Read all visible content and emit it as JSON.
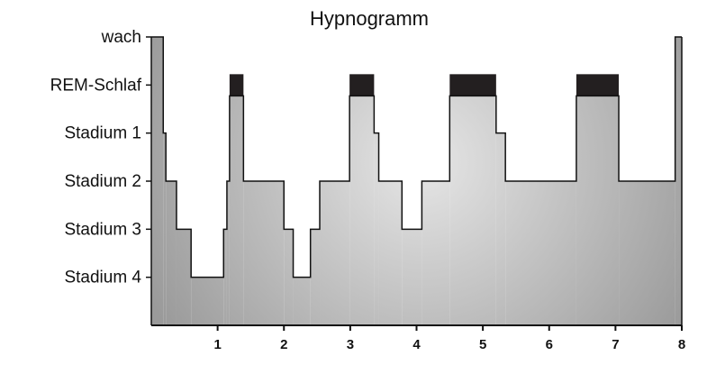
{
  "chart_data": {
    "type": "step",
    "title": "Hypnogramm",
    "x": [
      0,
      0.18,
      0.22,
      0.38,
      0.6,
      1.09,
      1.14,
      1.18,
      1.39,
      2.0,
      2.14,
      2.4,
      2.54,
      2.99,
      3.36,
      3.43,
      3.78,
      4.08,
      4.5,
      5.2,
      5.34,
      6.41,
      7.05,
      7.9,
      8
    ],
    "values": [
      5,
      3,
      2,
      1,
      0,
      1,
      2,
      4,
      2,
      1,
      0,
      1,
      2,
      4,
      3,
      2,
      1,
      2,
      4,
      3,
      2,
      4,
      2,
      5,
      5
    ],
    "xlim": [
      0,
      8
    ],
    "xticks": [
      1,
      2,
      3,
      4,
      5,
      6,
      7,
      8
    ],
    "ylim": [
      -1,
      5
    ],
    "yticks": [
      {
        "value": 5,
        "label": "wach"
      },
      {
        "value": 4,
        "label": "REM-Schlaf"
      },
      {
        "value": 3,
        "label": "Stadium 1"
      },
      {
        "value": 2,
        "label": "Stadium 2"
      },
      {
        "value": 1,
        "label": "Stadium 3"
      },
      {
        "value": 0,
        "label": "Stadium 4"
      }
    ],
    "color": "#c4c4c4",
    "highlight": {
      "value": 4,
      "color": "#231f20"
    }
  }
}
